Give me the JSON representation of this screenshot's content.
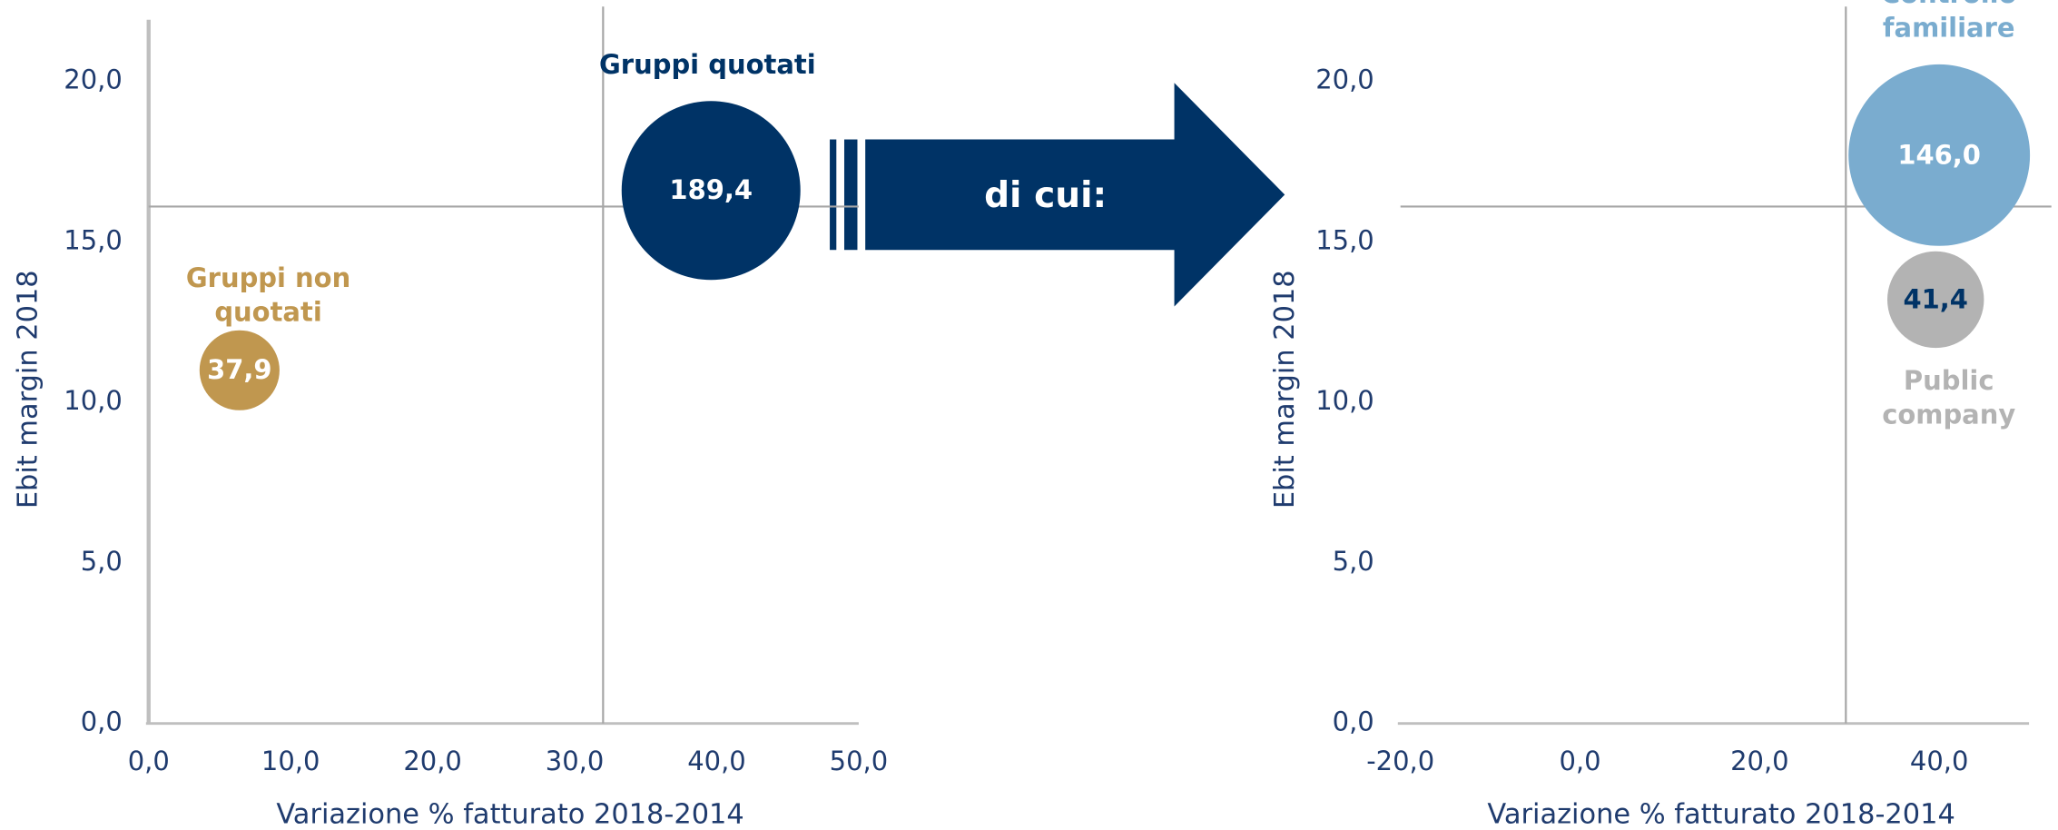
{
  "arrow_label": "di cui:",
  "chart_data": [
    {
      "type": "bubble",
      "x_label": "Variazione % fatturato 2018-2014",
      "y_label": "Ebit margin 2018",
      "xlim": [
        0,
        50
      ],
      "ylim": [
        0,
        22
      ],
      "xticks": [
        {
          "value": 0,
          "label": "0,0"
        },
        {
          "value": 10,
          "label": "10,0"
        },
        {
          "value": 20,
          "label": "20,0"
        },
        {
          "value": 30,
          "label": "30,0"
        },
        {
          "value": 40,
          "label": "40,0"
        },
        {
          "value": 50,
          "label": "50,0"
        }
      ],
      "yticks": [
        {
          "value": 0,
          "label": "0,0"
        },
        {
          "value": 5,
          "label": "5,0"
        },
        {
          "value": 10,
          "label": "10,0"
        },
        {
          "value": 15,
          "label": "15,0"
        },
        {
          "value": 20,
          "label": "20,0"
        }
      ],
      "ref_x": 32.0,
      "ref_y": 16.1,
      "series": [
        {
          "name": "Gruppi quotati",
          "color": "#003366",
          "x": [
            39.6
          ],
          "values": [
            16.6
          ],
          "sizes": [
            189.4
          ],
          "value_labels": [
            "189,4"
          ]
        },
        {
          "name": "Gruppi non quotati",
          "color": "#c0974f",
          "x": [
            6.4
          ],
          "values": [
            11.0
          ],
          "sizes": [
            37.9
          ],
          "value_labels": [
            "37,9"
          ]
        }
      ]
    },
    {
      "type": "bubble",
      "x_label": "Variazione % fatturato 2018-2014",
      "y_label": "Ebit margin 2018",
      "xlim": [
        -20,
        50
      ],
      "ylim": [
        0,
        22
      ],
      "xticks": [
        {
          "value": -20,
          "label": "-20,0"
        },
        {
          "value": 0,
          "label": "0,0"
        },
        {
          "value": 20,
          "label": "20,0"
        },
        {
          "value": 40,
          "label": "40,0"
        }
      ],
      "yticks": [
        {
          "value": 0,
          "label": "0,0"
        },
        {
          "value": 5,
          "label": "5,0"
        },
        {
          "value": 10,
          "label": "10,0"
        },
        {
          "value": 15,
          "label": "15,0"
        },
        {
          "value": 20,
          "label": "20,0"
        }
      ],
      "ref_x": 29.6,
      "ref_y": 16.1,
      "series": [
        {
          "name": "Controllo familiare",
          "color": "#7aaccf",
          "x": [
            40.0
          ],
          "values": [
            17.7
          ],
          "sizes": [
            146.0
          ],
          "value_labels": [
            "146,0"
          ]
        },
        {
          "name": "Public company",
          "color": "#b3b3b3",
          "x": [
            39.6
          ],
          "values": [
            13.2
          ],
          "sizes": [
            41.4
          ],
          "value_labels": [
            "41,4"
          ]
        }
      ]
    }
  ]
}
